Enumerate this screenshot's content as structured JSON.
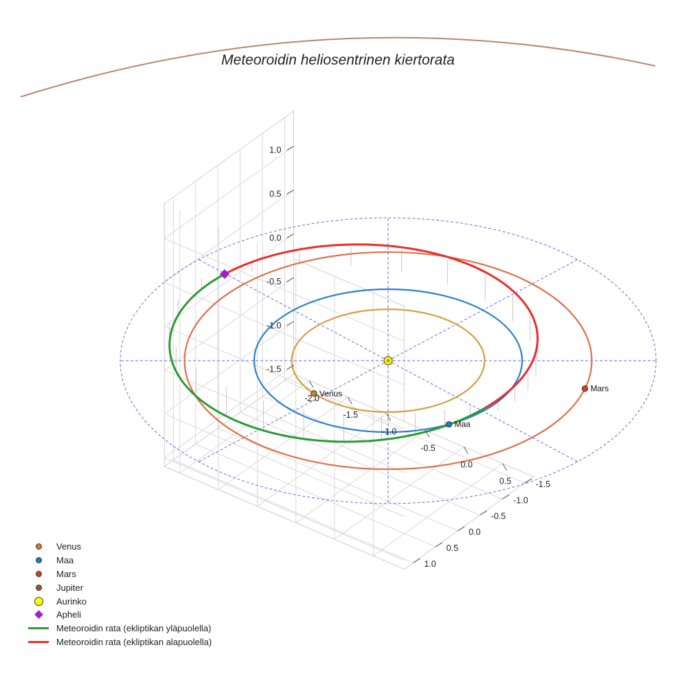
{
  "chart_data": {
    "type": "scatter3d",
    "title": "Meteoroidin heliosentrinen kiertorata",
    "axes": {
      "x_ticks": [
        "-2.0",
        "-1.5",
        "-1.0",
        "-0.5",
        "0.0",
        "0.5"
      ],
      "y_ticks": [
        "-1.5",
        "-1.0",
        "-0.5",
        "0.0",
        "0.5",
        "1.0"
      ],
      "z_ticks": [
        "-1.5",
        "-1.0",
        "-0.5",
        "0.0",
        "0.5",
        "1.0"
      ],
      "xlim": [
        -2.2,
        0.9
      ],
      "ylim": [
        -1.7,
        1.2
      ],
      "zlim": [
        -1.6,
        1.4
      ]
    },
    "planets": [
      {
        "name": "Venus",
        "orbit_radius_au": 0.72,
        "orbit_color": "#d4a040",
        "marker_color": "#c8812a",
        "label": "Venus"
      },
      {
        "name": "Maa",
        "orbit_radius_au": 1.0,
        "orbit_color": "#2a7fd0",
        "marker_color": "#2a78c0",
        "label": "Maa"
      },
      {
        "name": "Mars",
        "orbit_radius_au": 1.52,
        "orbit_color": "#e0704a",
        "marker_color": "#d04020",
        "label": "Mars"
      },
      {
        "name": "Jupiter",
        "orbit_radius_au": 5.2,
        "orbit_color": "#b8876a",
        "marker_color": "#a0522d",
        "label": ""
      }
    ],
    "sun": {
      "name": "Aurinko",
      "color": "#ffff00"
    },
    "meteoroid": {
      "aphelion_au": 1.72,
      "perihelion_au": 0.98,
      "above_color": "#2a9a30",
      "below_color": "#ee2a2a",
      "aphelion_color": "#9a22cc"
    },
    "legend": [
      {
        "label": "Venus",
        "kind": "dot",
        "color": "#c8812a"
      },
      {
        "label": "Maa",
        "kind": "dot",
        "color": "#2a78c0"
      },
      {
        "label": "Mars",
        "kind": "dot",
        "color": "#d04020"
      },
      {
        "label": "Jupiter",
        "kind": "dot",
        "color": "#a0522d"
      },
      {
        "label": "Aurinko",
        "kind": "bigdot",
        "color": "#ffff00"
      },
      {
        "label": "Apheli",
        "kind": "diamond",
        "color": "#9a22cc"
      },
      {
        "label": "Meteoroidin rata (ekliptikan yläpuolella)",
        "kind": "line",
        "color": "#2a9a30"
      },
      {
        "label": "Meteoroidin rata (ekliptikan alapuolella)",
        "kind": "line",
        "color": "#ee2a2a"
      }
    ]
  }
}
